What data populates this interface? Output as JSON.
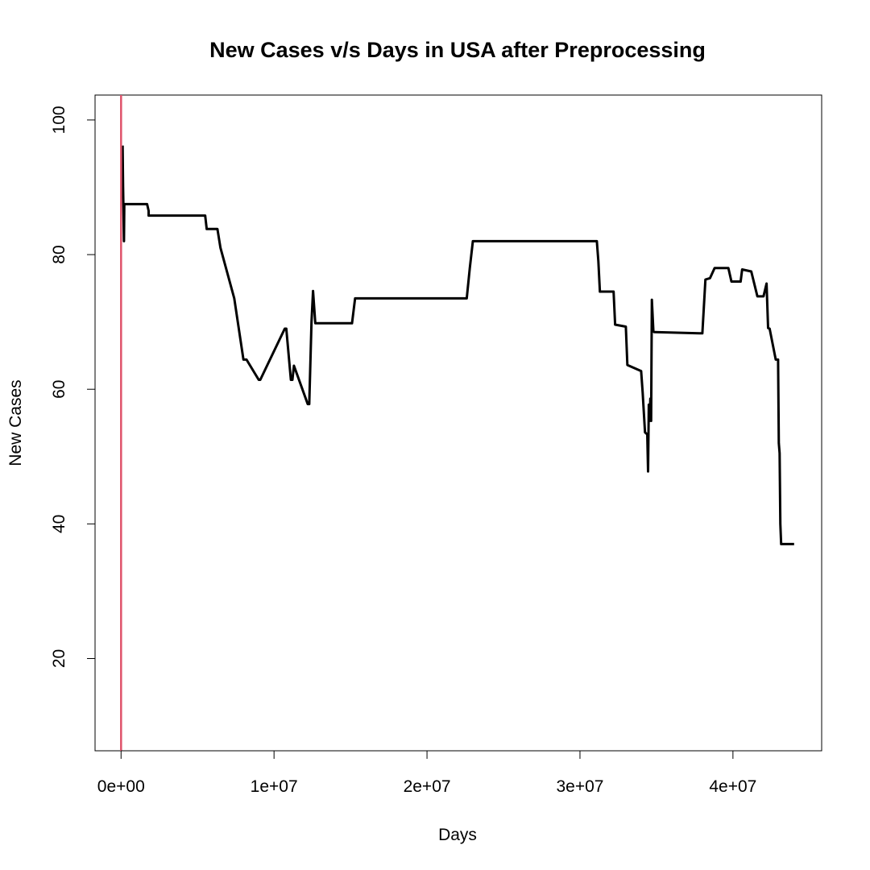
{
  "chart_data": {
    "type": "line",
    "title": "New Cases v/s Days in USA after Preprocessing",
    "xlabel": "Days",
    "ylabel": "New Cases",
    "xlim": [
      -1700000,
      45800000
    ],
    "ylim": [
      6.3,
      103.7
    ],
    "x_ticks": [
      0,
      10000000,
      20000000,
      30000000,
      40000000
    ],
    "x_tick_labels": [
      "0e+00",
      "1e+07",
      "2e+07",
      "3e+07",
      "4e+07"
    ],
    "y_ticks": [
      20,
      40,
      60,
      80,
      100
    ],
    "y_tick_labels": [
      "20",
      "40",
      "60",
      "80",
      "100"
    ],
    "grid": false,
    "legend": "none",
    "series": [
      {
        "color": "#000000",
        "x": [
          100000,
          130000,
          190000,
          190000,
          210000,
          210000,
          1700000,
          1800000,
          1800000,
          5500000,
          5600000,
          6300000,
          6500000,
          7400000,
          7400000,
          8000000,
          8200000,
          9000000,
          9100000,
          10700000,
          10800000,
          11100000,
          11200000,
          11300000,
          12200000,
          12300000,
          12450000,
          12550000,
          12700000,
          15100000,
          15300000,
          22600000,
          22800000,
          23000000,
          31100000,
          31200000,
          31300000,
          32200000,
          32300000,
          33000000,
          33100000,
          34000000,
          34100000,
          34250000,
          34400000,
          34450000,
          34500000,
          34550000,
          34600000,
          34650000,
          34700000,
          34800000,
          34850000,
          34900000,
          37800000,
          38000000,
          38200000,
          38500000,
          38800000,
          39700000,
          39900000,
          40500000,
          40600000,
          41200000,
          41600000,
          42000000,
          42200000,
          42300000,
          42400000,
          42800000,
          42950000,
          43000000,
          43050000,
          43100000,
          43150000,
          44000000
        ],
        "y": [
          96.2,
          90,
          82,
          82,
          87.5,
          87.5,
          87.5,
          86.5,
          85.8,
          85.8,
          83.8,
          83.8,
          81,
          73.5,
          73.5,
          64.4,
          64.4,
          61.4,
          61.4,
          69,
          69,
          61.4,
          61.4,
          63.5,
          57.8,
          57.8,
          70,
          74.6,
          69.8,
          69.8,
          73.5,
          73.5,
          78,
          82,
          82,
          79,
          74.5,
          74.5,
          69.6,
          69.3,
          63.6,
          62.7,
          59.5,
          53.6,
          53.3,
          47.8,
          57.7,
          55.3,
          58.6,
          55.3,
          73.3,
          68.6,
          68.5,
          68.5,
          68.3,
          68.3,
          76.3,
          76.5,
          78,
          78,
          76,
          76,
          77.8,
          77.5,
          73.8,
          73.8,
          75.7,
          69.1,
          69,
          64.4,
          64.4,
          52,
          50.5,
          40,
          37,
          37
        ]
      },
      {
        "color": "#DF536B",
        "x": [
          0,
          0
        ],
        "y": [
          6.3,
          103.7
        ]
      }
    ]
  }
}
